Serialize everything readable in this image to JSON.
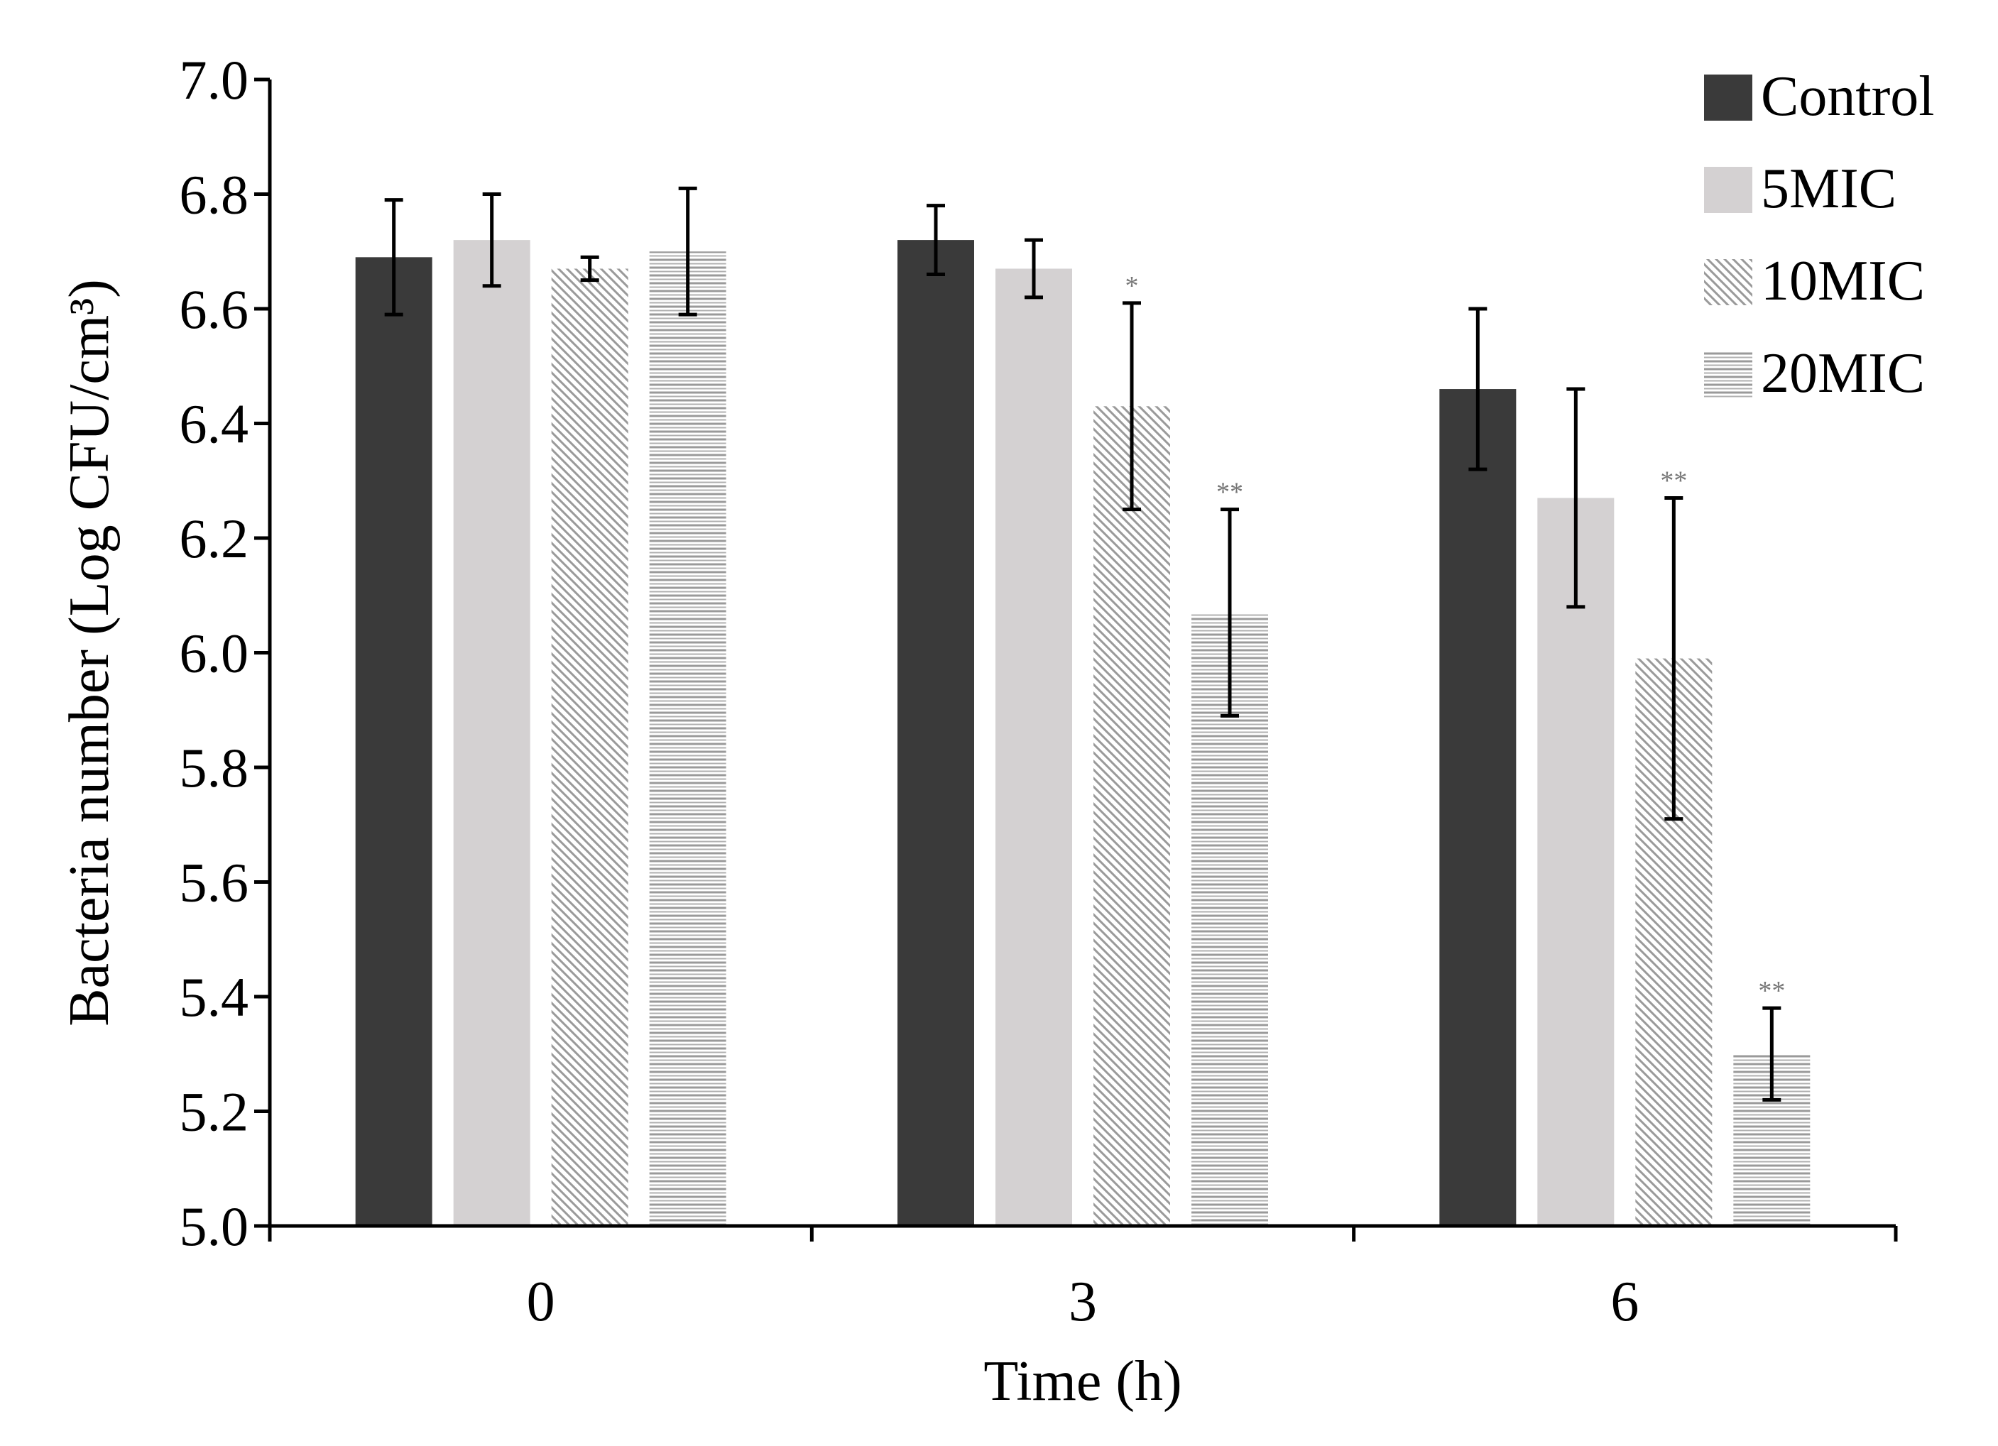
{
  "chart_data": {
    "type": "bar",
    "title": "",
    "xlabel": "Time (h)",
    "ylabel": "Bacteria number (Log CFU/cm³)",
    "ylim": [
      5.0,
      7.0
    ],
    "yticks": [
      "5.0",
      "5.2",
      "5.4",
      "5.6",
      "5.8",
      "6.0",
      "6.2",
      "6.4",
      "6.6",
      "6.8",
      "7.0"
    ],
    "categories": [
      "0",
      "3",
      "6"
    ],
    "legend_position": "top-right",
    "series": [
      {
        "name": "Control",
        "fill": "solid-dark",
        "color": "#3a3a3a",
        "values": [
          6.69,
          6.72,
          6.46
        ],
        "errors": [
          0.1,
          0.06,
          0.14
        ],
        "marks": [
          "",
          "",
          ""
        ]
      },
      {
        "name": "5MIC",
        "fill": "solid-light",
        "color": "#d4d1d2",
        "values": [
          6.72,
          6.67,
          6.27
        ],
        "errors": [
          0.08,
          0.05,
          0.19
        ],
        "marks": [
          "",
          "",
          ""
        ]
      },
      {
        "name": "10MIC",
        "fill": "diagonal-hatch",
        "color": "#9a9a9a",
        "values": [
          6.67,
          6.43,
          5.99
        ],
        "errors": [
          0.02,
          0.18,
          0.28
        ],
        "marks": [
          "",
          "*",
          "**"
        ]
      },
      {
        "name": "20MIC",
        "fill": "horizontal-hatch",
        "color": "#9a9a9a",
        "values": [
          6.7,
          6.07,
          5.3
        ],
        "errors": [
          0.11,
          0.18,
          0.08
        ],
        "marks": [
          "",
          "**",
          "**"
        ]
      }
    ]
  }
}
